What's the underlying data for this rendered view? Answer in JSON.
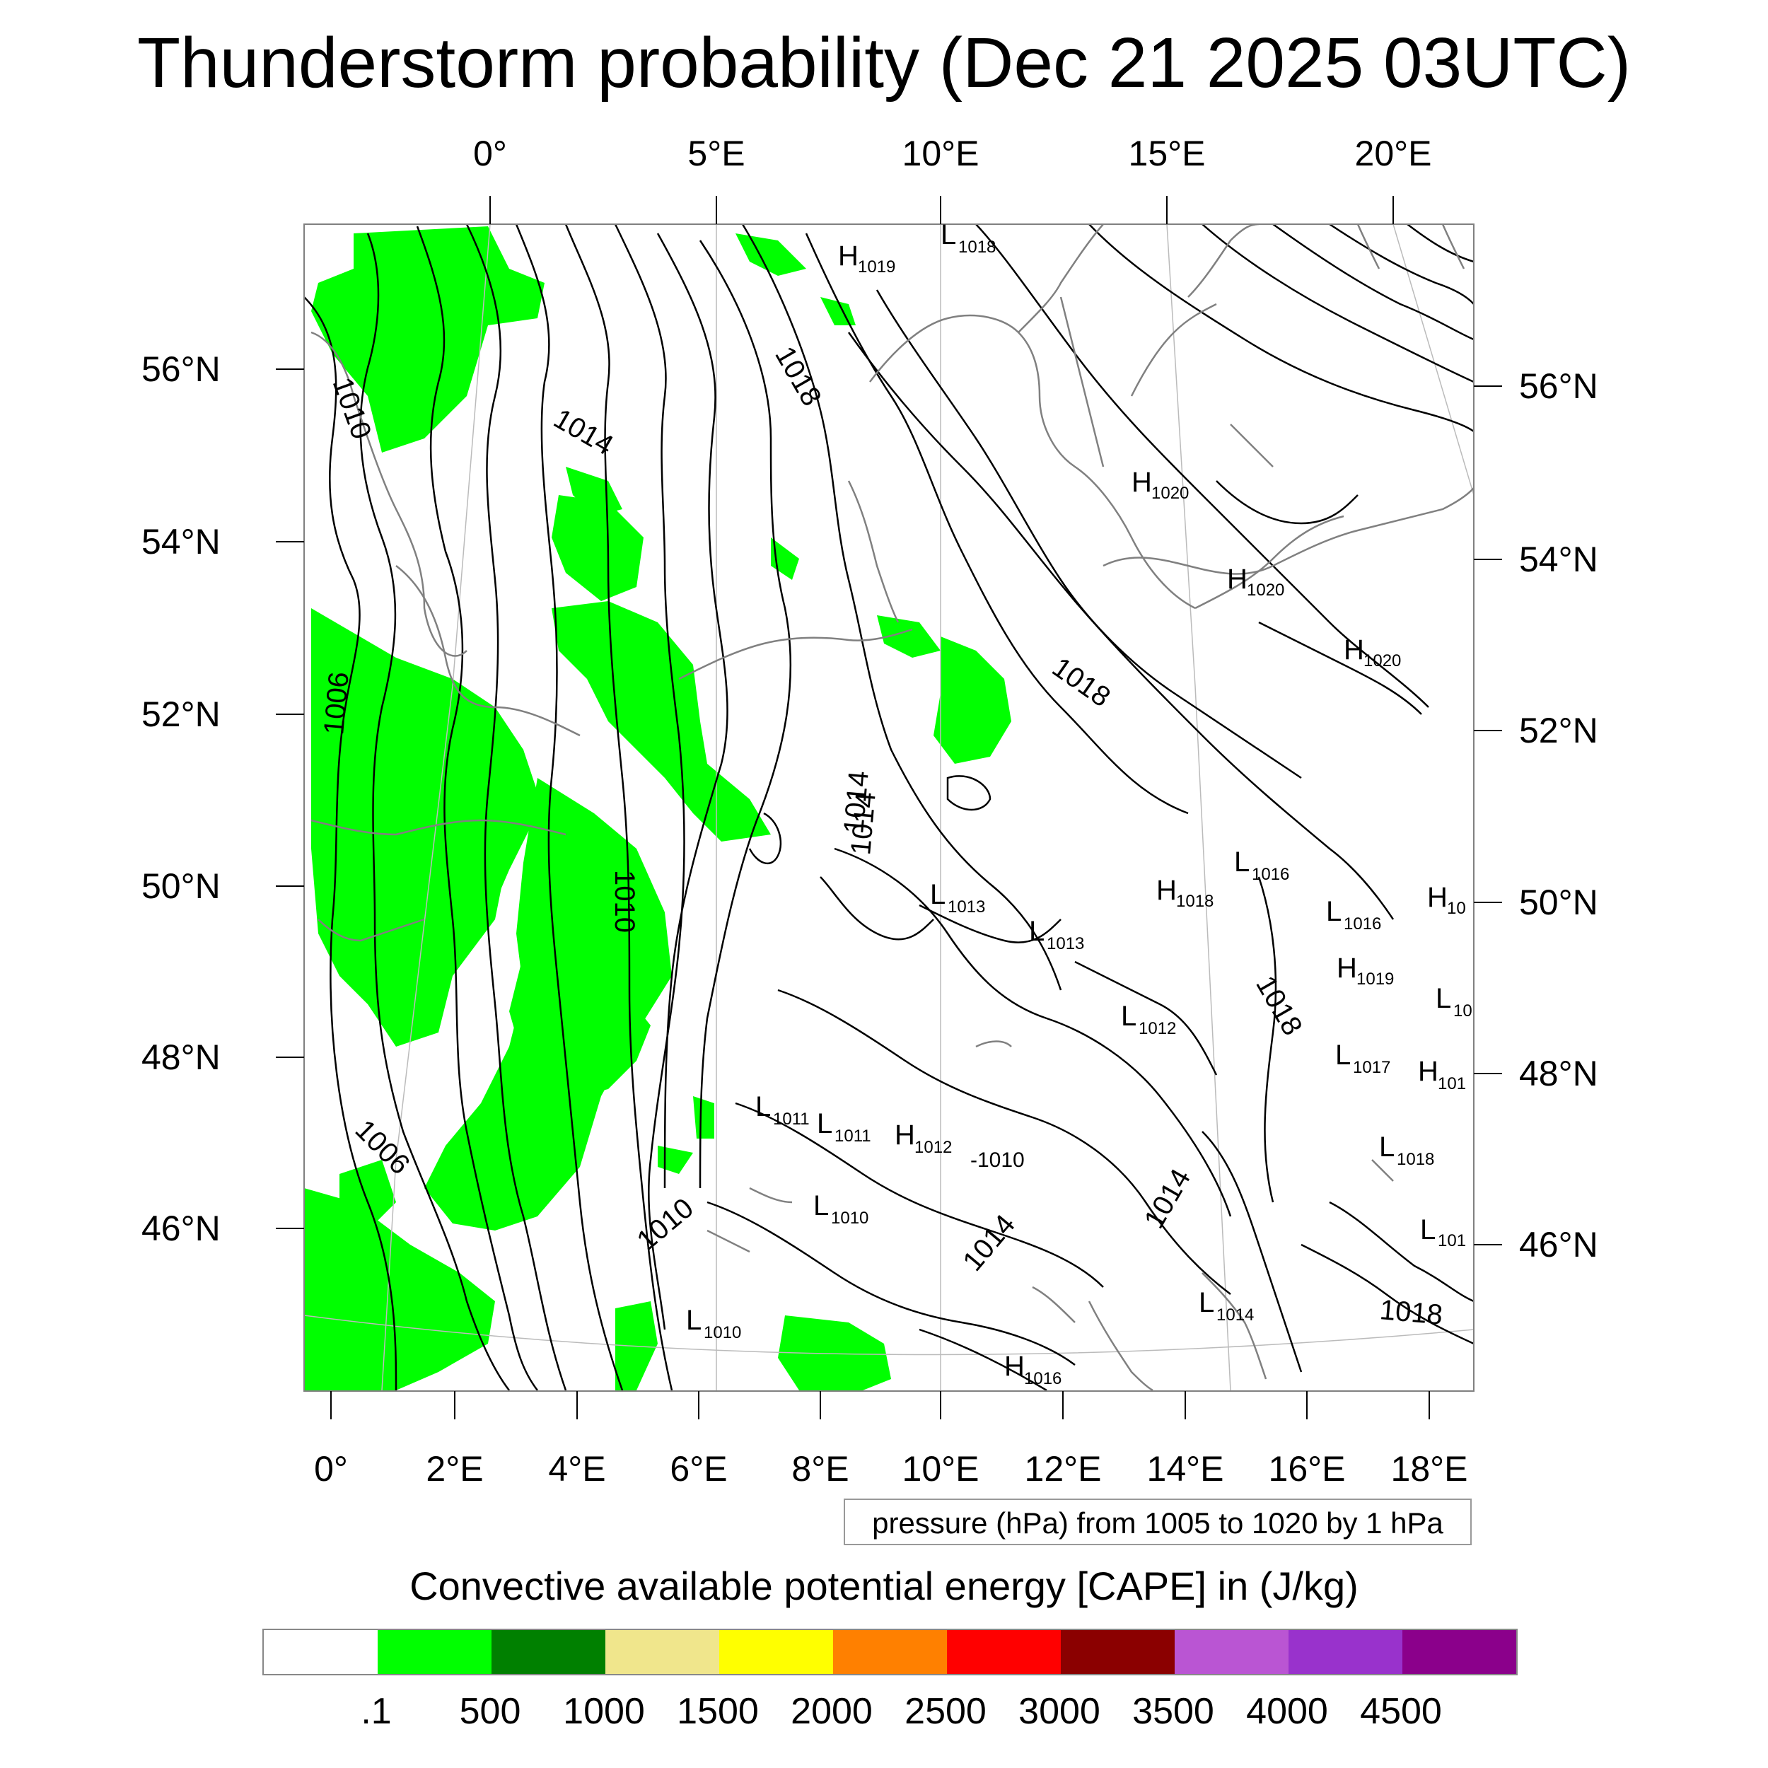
{
  "title": "Thunderstorm probability (Dec 21 2025 03UTC)",
  "top_lon_labels": [
    "0°",
    "5°E",
    "10°E",
    "15°E",
    "20°E"
  ],
  "bottom_lon_labels": [
    "0°",
    "2°E",
    "4°E",
    "6°E",
    "8°E",
    "10°E",
    "12°E",
    "14°E",
    "16°E",
    "18°E"
  ],
  "left_lat_labels": [
    "56°N",
    "54°N",
    "52°N",
    "50°N",
    "48°N",
    "46°N"
  ],
  "right_lat_labels": [
    "56°N",
    "54°N",
    "52°N",
    "50°N",
    "48°N",
    "46°N"
  ],
  "contour_info": "pressure (hPa) from 1005 to 1020 by 1 hPa",
  "colorbar": {
    "title": "Convective available potential energy [CAPE] in (J/kg)",
    "colors": [
      "#ffffff",
      "#00ff00",
      "#008000",
      "#f0e68c",
      "#ffff00",
      "#ff8000",
      "#ff0000",
      "#8b0000",
      "#ba55d3",
      "#9932cc",
      "#8b008b"
    ],
    "labels": [
      ".1",
      "500",
      "1000",
      "1500",
      "2000",
      "2500",
      "3000",
      "3500",
      "4000",
      "4500"
    ]
  },
  "contour_labels": [
    "1010",
    "1014",
    "1018",
    "1006",
    "1010",
    "1014",
    "1018",
    "1006",
    "1010",
    "1014",
    "1014",
    "1014",
    "1018",
    "1018",
    "-1010"
  ],
  "pressure_centers": [
    {
      "type": "H",
      "value": "1019"
    },
    {
      "type": "L",
      "value": "1018"
    },
    {
      "type": "H",
      "value": "1020"
    },
    {
      "type": "H",
      "value": "1020"
    },
    {
      "type": "H",
      "value": "1020"
    },
    {
      "type": "L",
      "value": "1016"
    },
    {
      "type": "H",
      "value": "1018"
    },
    {
      "type": "L",
      "value": "1013"
    },
    {
      "type": "L",
      "value": "1013"
    },
    {
      "type": "L",
      "value": "1016"
    },
    {
      "type": "H",
      "value": "10"
    },
    {
      "type": "H",
      "value": "1019"
    },
    {
      "type": "L",
      "value": "10"
    },
    {
      "type": "L",
      "value": "1012"
    },
    {
      "type": "L",
      "value": "1017"
    },
    {
      "type": "H",
      "value": "101"
    },
    {
      "type": "L",
      "value": "1011"
    },
    {
      "type": "L",
      "value": "1011"
    },
    {
      "type": "H",
      "value": "1012"
    },
    {
      "type": "L",
      "value": "1018"
    },
    {
      "type": "L",
      "value": "1010"
    },
    {
      "type": "L",
      "value": "101"
    },
    {
      "type": "L",
      "value": "1014"
    },
    {
      "type": "L",
      "value": "1010"
    },
    {
      "type": "H",
      "value": "1016"
    }
  ]
}
